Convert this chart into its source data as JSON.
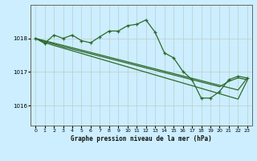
{
  "title": "Graphe pression niveau de la mer (hPa)",
  "background_color": "#cceeff",
  "grid_color": "#bbcccc",
  "line_color": "#2d6a2d",
  "xlim": [
    -0.5,
    23.5
  ],
  "ylim": [
    1015.4,
    1019.0
  ],
  "yticks": [
    1016,
    1017,
    1018
  ],
  "xticks": [
    0,
    1,
    2,
    3,
    4,
    5,
    6,
    7,
    8,
    9,
    10,
    11,
    12,
    13,
    14,
    15,
    16,
    17,
    18,
    19,
    20,
    21,
    22,
    23
  ],
  "series_with_markers": [
    [
      1018.0,
      1017.85,
      1018.1,
      1018.0,
      1018.1,
      1017.93,
      1017.87,
      1018.05,
      1018.22,
      1018.22,
      1018.38,
      1018.42,
      1018.55,
      1018.18,
      1017.57,
      1017.42,
      1017.02,
      1016.77,
      1016.22,
      1016.22,
      1016.42,
      1016.77,
      1016.87,
      1016.82
    ]
  ],
  "series_diagonal": [
    [
      1018.0,
      1017.93,
      1017.86,
      1017.79,
      1017.72,
      1017.65,
      1017.58,
      1017.51,
      1017.44,
      1017.37,
      1017.3,
      1017.23,
      1017.16,
      1017.09,
      1017.02,
      1016.95,
      1016.88,
      1016.81,
      1016.74,
      1016.67,
      1016.6,
      1016.53,
      1016.46,
      1016.82
    ],
    [
      1018.0,
      1017.91,
      1017.83,
      1017.75,
      1017.68,
      1017.61,
      1017.54,
      1017.47,
      1017.4,
      1017.33,
      1017.26,
      1017.19,
      1017.12,
      1017.05,
      1016.98,
      1016.91,
      1016.84,
      1016.77,
      1016.7,
      1016.63,
      1016.56,
      1016.72,
      1016.82,
      1016.77
    ],
    [
      1018.0,
      1017.88,
      1017.79,
      1017.71,
      1017.63,
      1017.55,
      1017.47,
      1017.39,
      1017.31,
      1017.23,
      1017.15,
      1017.07,
      1016.99,
      1016.91,
      1016.83,
      1016.75,
      1016.67,
      1016.59,
      1016.51,
      1016.43,
      1016.35,
      1016.27,
      1016.19,
      1016.75
    ]
  ]
}
